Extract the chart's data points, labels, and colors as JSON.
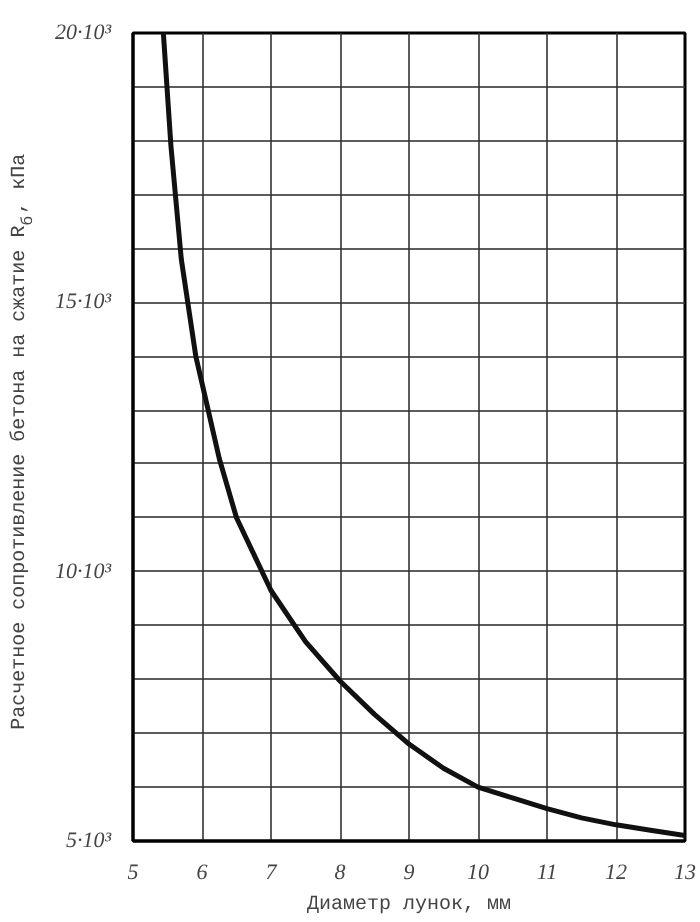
{
  "chart_data": {
    "type": "line",
    "xlabel": "Диаметр лунок, мм",
    "ylabel": "Расчетное сопротивление бетона на сжатие R$_{б}$, кПа",
    "x": [
      5.44,
      5.55,
      5.7,
      5.91,
      6.0,
      6.25,
      6.5,
      7.0,
      7.5,
      8.0,
      8.5,
      9.0,
      9.5,
      10.0,
      10.5,
      11.0,
      11.5,
      12.0,
      12.5,
      13.0
    ],
    "series": [
      {
        "color": "#111111",
        "values": [
          20000,
          17900,
          15800,
          14000,
          13500,
          12100,
          11000,
          9650,
          8700,
          7970,
          7350,
          6800,
          6350,
          6000,
          5800,
          5600,
          5430,
          5300,
          5200,
          5100
        ]
      }
    ],
    "xlim": [
      5,
      13
    ],
    "ylim": [
      5000,
      20000
    ],
    "xticks": [
      5,
      6,
      7,
      8,
      9,
      10,
      11,
      12,
      13
    ],
    "yticks": [
      {
        "value": 5000,
        "label": "5·10³"
      },
      {
        "value": 6000,
        "label": null
      },
      {
        "value": 7000,
        "label": null
      },
      {
        "value": 8000,
        "label": null
      },
      {
        "value": 9000,
        "label": null
      },
      {
        "value": 10000,
        "label": "10·10³"
      },
      {
        "value": 11000,
        "label": null
      },
      {
        "value": 12000,
        "label": null
      },
      {
        "value": 13000,
        "label": null
      },
      {
        "value": 14000,
        "label": null
      },
      {
        "value": 15000,
        "label": "15·10³"
      },
      {
        "value": 16000,
        "label": null
      },
      {
        "value": 17000,
        "label": null
      },
      {
        "value": 18000,
        "label": null
      },
      {
        "value": 19000,
        "label": null
      },
      {
        "value": 20000,
        "label": "20·10³"
      }
    ],
    "grid": true,
    "marker": "none",
    "line_style": "solid"
  }
}
